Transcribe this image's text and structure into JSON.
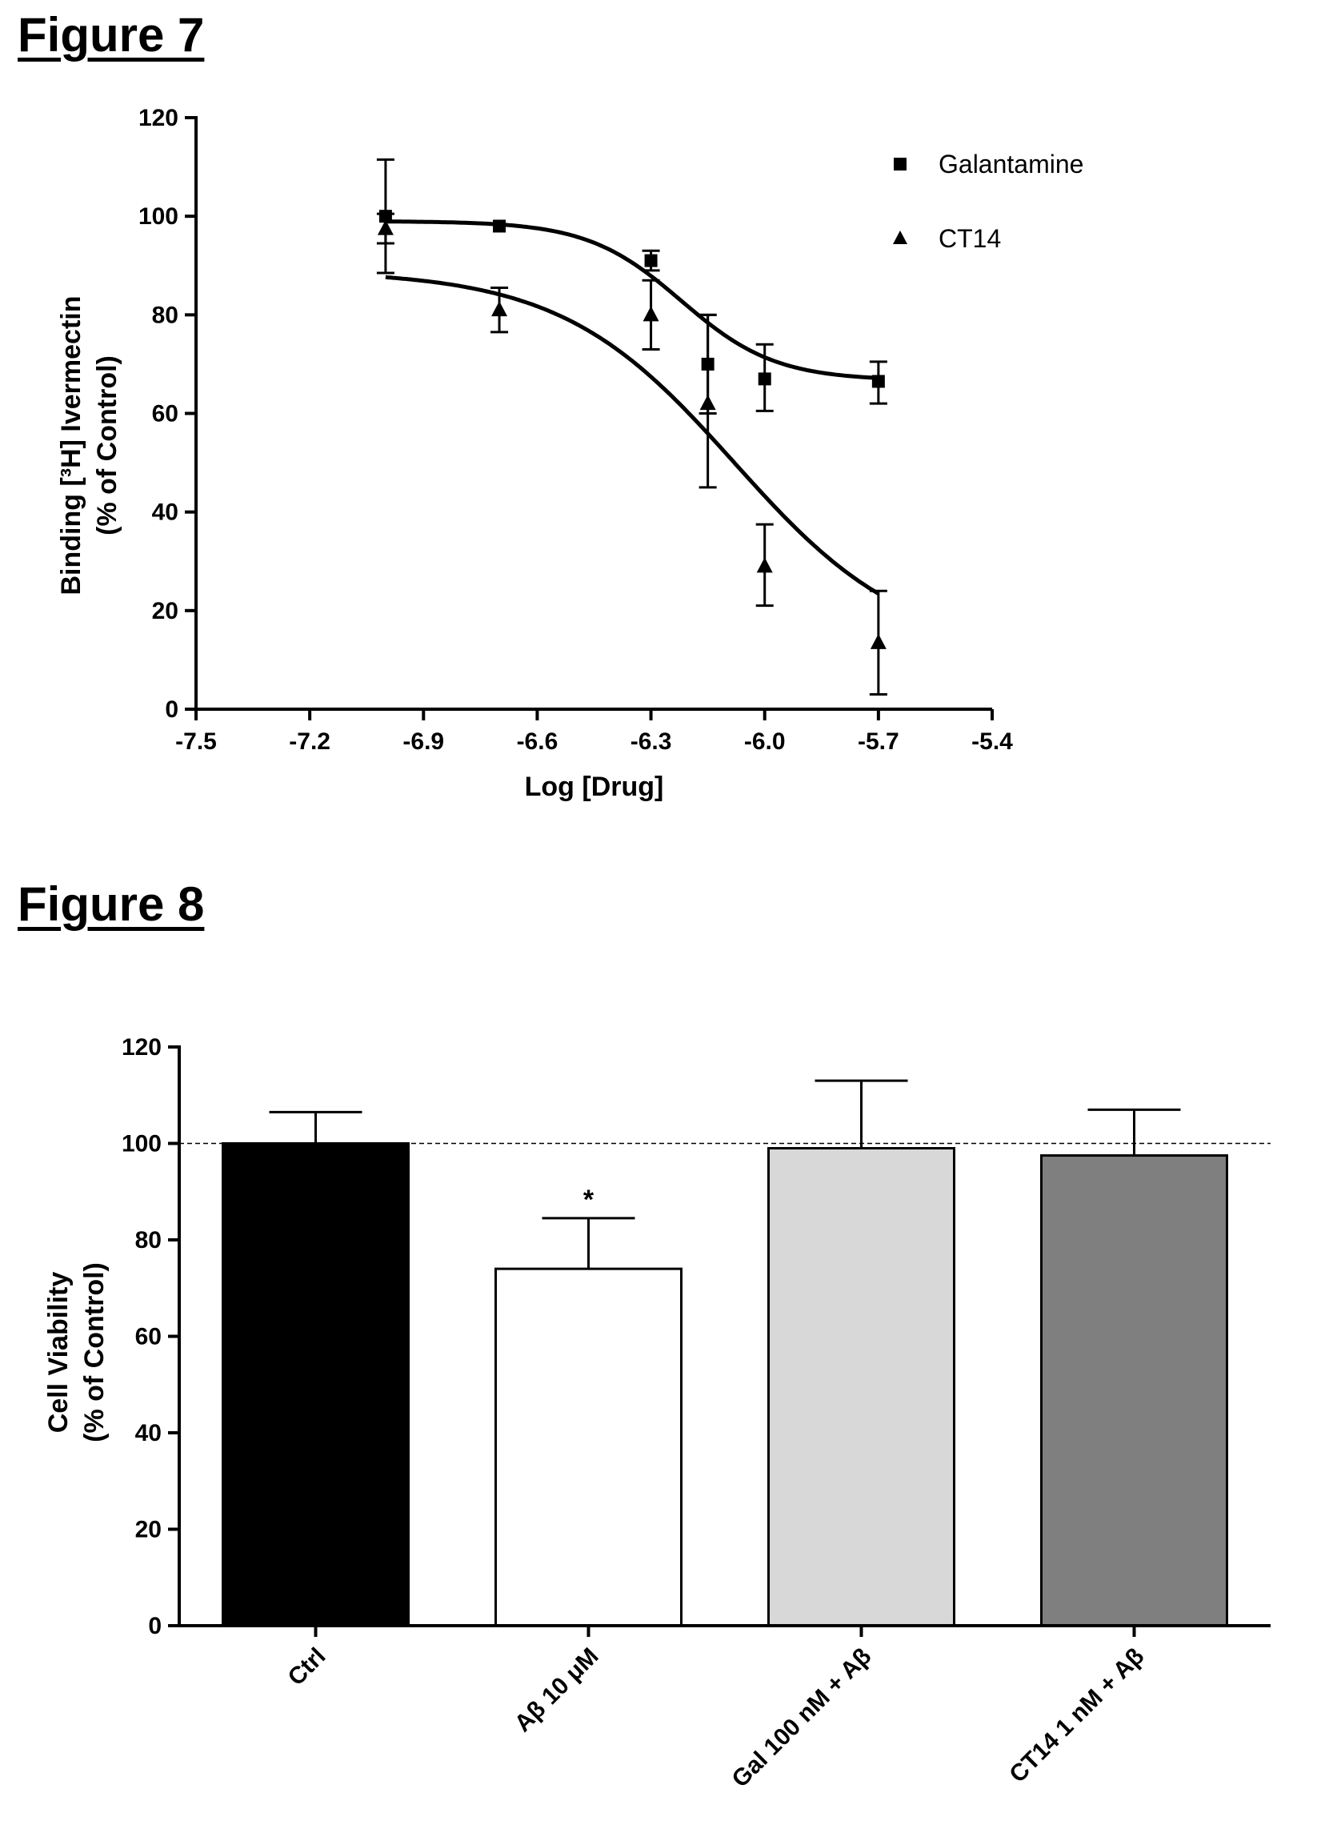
{
  "figures": [
    {
      "title": "Figure 7"
    },
    {
      "title": "Figure 8"
    }
  ],
  "chart_data": [
    {
      "type": "scatter",
      "title": "",
      "xlabel": "Log [Drug]",
      "ylabel_line1": "Binding [³H] Ivermectin",
      "ylabel_line2": "(% of Control)",
      "xlim": [
        -7.5,
        -5.4
      ],
      "ylim": [
        0,
        120
      ],
      "xticks": [
        -7.5,
        -7.2,
        -6.9,
        -6.6,
        -6.3,
        -6.0,
        -5.7,
        -5.4
      ],
      "xtick_labels": [
        "-7.5",
        "-7.2",
        "-6.9",
        "-6.6",
        "-6.3",
        "-6.0",
        "-5.7",
        "-5.4"
      ],
      "yticks": [
        0,
        20,
        40,
        60,
        80,
        100,
        120
      ],
      "ytick_labels": [
        "0",
        "20",
        "40",
        "60",
        "80",
        "100",
        "120"
      ],
      "grid": false,
      "legend_position": "top-right",
      "series": [
        {
          "name": "Galantamine",
          "marker": "square",
          "x": [
            -7.0,
            -6.7,
            -6.3,
            -6.15,
            -6.0,
            -5.7
          ],
          "y": [
            100,
            98,
            91,
            70,
            67,
            66.5
          ],
          "err_upper": [
            11.5,
            0,
            2,
            10,
            7,
            4
          ],
          "err_lower": [
            11.5,
            0,
            2,
            10,
            6.5,
            4.5
          ],
          "fit": {
            "bottom": 66.7,
            "top": 99,
            "logIC50": -6.22,
            "hill": -3.5
          }
        },
        {
          "name": "CT14",
          "marker": "triangle",
          "x": [
            -7.0,
            -6.7,
            -6.3,
            -6.15,
            -6.0,
            -5.7
          ],
          "y": [
            97.5,
            81,
            80,
            62,
            29,
            13.5
          ],
          "err_upper": [
            3,
            4.5,
            7,
            18,
            8.5,
            10.5
          ],
          "err_lower": [
            3,
            4.5,
            7,
            17,
            8,
            10.5
          ],
          "fit": {
            "bottom": 11,
            "top": 89,
            "logIC50": -6.08,
            "hill": -1.9
          }
        }
      ]
    },
    {
      "type": "bar",
      "title": "",
      "xlabel": "",
      "ylabel_line1": "Cell Viability",
      "ylabel_line2": "(% of Control)",
      "ylim": [
        0,
        120
      ],
      "yticks": [
        0,
        20,
        40,
        60,
        80,
        100,
        120
      ],
      "ytick_labels": [
        "0",
        "20",
        "40",
        "60",
        "80",
        "100",
        "120"
      ],
      "reference_line": 100,
      "grid": false,
      "categories": [
        "Ctrl",
        "Aβ 10 μM",
        "Gal 100 nM + Aβ",
        "CT14 1 nM + Aβ"
      ],
      "values": [
        100,
        74,
        99,
        97.5
      ],
      "errors": [
        6.5,
        10.5,
        14,
        9.5
      ],
      "significance": [
        "",
        "*",
        "",
        ""
      ],
      "colors": [
        "#000000",
        "#ffffff",
        "#d8d8d8",
        "#7f7f7f"
      ]
    }
  ]
}
